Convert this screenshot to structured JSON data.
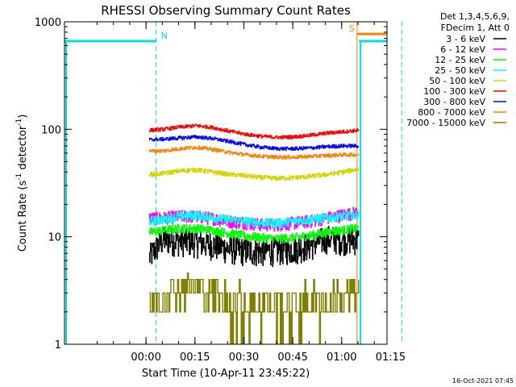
{
  "chart_data": {
    "type": "line",
    "title": "RHESSI Observing Summary Count Rates",
    "xlabel": "Start Time (10-Apr-11 23:45:22)",
    "ylabel_main": "Count Rate (s",
    "ylabel_sup1": "-1",
    "ylabel_mid": " detector",
    "ylabel_sup2": "-1",
    "ylabel_end": ")",
    "timestamp": "16-Oct-2021 07:45",
    "y_scale": "log",
    "ylim": [
      1,
      1000
    ],
    "xlim_minutes": [
      -25.4,
      73.5
    ],
    "x_ticks": [
      {
        "label": "00:00",
        "minutes": -0.4
      },
      {
        "label": "00:15",
        "minutes": 14.6
      },
      {
        "label": "00:30",
        "minutes": 29.6
      },
      {
        "label": "00:45",
        "minutes": 44.6
      },
      {
        "label": "01:00",
        "minutes": 59.6
      },
      {
        "label": "01:15",
        "minutes": 74.6
      }
    ],
    "y_ticks": [
      {
        "label": "1",
        "value": 1
      },
      {
        "label": "10",
        "value": 10
      },
      {
        "label": "100",
        "value": 100
      },
      {
        "label": "1000",
        "value": 1000
      }
    ],
    "legend_header": [
      "Det 1,3,4,5,6,9,",
      "FDecim 1, Att 0"
    ],
    "legend_placement": "top-right outside",
    "data_start_minutes": 0.6,
    "data_end_minutes": 64.9,
    "series": [
      {
        "name": "3 - 6 keV",
        "color": "#000000",
        "x": [
          0.6,
          5,
          15,
          20,
          25,
          30,
          35,
          40,
          45,
          50,
          55,
          60,
          64.9
        ],
        "y": [
          6.5,
          9.5,
          9.0,
          8.5,
          7.8,
          7.5,
          7.4,
          7.6,
          7.8,
          8.4,
          9.8,
          9.5,
          9.5
        ]
      },
      {
        "name": "6 - 12 keV",
        "color": "#ff00ff",
        "x": [
          0.6,
          5,
          10,
          15,
          20,
          25,
          30,
          35,
          40,
          45,
          50,
          55,
          60,
          64.9
        ],
        "y": [
          15,
          15,
          15.5,
          15.5,
          14.8,
          14,
          13.5,
          13,
          13,
          13.5,
          14,
          15,
          16,
          17
        ]
      },
      {
        "name": "12 - 25 keV",
        "color": "#00ff00",
        "x": [
          0.6,
          5,
          10,
          15,
          20,
          25,
          30,
          35,
          40,
          45,
          50,
          55,
          60,
          64.9
        ],
        "y": [
          11,
          11.5,
          12,
          12,
          11.5,
          10.8,
          10.2,
          9.8,
          9.6,
          9.8,
          10.3,
          11,
          11.6,
          12
        ]
      },
      {
        "name": "25 - 50 keV",
        "color": "#00ffff",
        "x": [
          0.6,
          5,
          10,
          15,
          20,
          25,
          30,
          35,
          40,
          45,
          50,
          55,
          60,
          64.9
        ],
        "y": [
          14,
          14.5,
          15.5,
          16,
          15,
          14.5,
          14,
          13.5,
          13.5,
          14,
          14.5,
          15,
          15.5,
          16
        ]
      },
      {
        "name": "50 - 100 keV",
        "color": "#d4d400",
        "x": [
          0.6,
          5,
          10,
          15,
          20,
          25,
          30,
          35,
          40,
          45,
          50,
          55,
          60,
          64.9
        ],
        "y": [
          38,
          39,
          41,
          42,
          40,
          38,
          37,
          35.5,
          35,
          35.5,
          36.5,
          38,
          40,
          43
        ]
      },
      {
        "name": "100 - 300 keV",
        "color": "#ff0000",
        "x": [
          0.6,
          5,
          10,
          15,
          20,
          25,
          30,
          35,
          40,
          45,
          50,
          55,
          60,
          64.9
        ],
        "y": [
          98,
          100,
          105,
          108,
          104,
          96,
          90,
          86,
          84,
          85,
          88,
          92,
          95,
          98
        ]
      },
      {
        "name": "300 - 800 keV",
        "color": "#0000ff",
        "x": [
          0.6,
          5,
          10,
          15,
          20,
          25,
          30,
          35,
          40,
          45,
          50,
          55,
          60,
          64.9
        ],
        "y": [
          80,
          81,
          83,
          85,
          82,
          77,
          72,
          68,
          66,
          66,
          67,
          69,
          70,
          70
        ]
      },
      {
        "name": "800 - 7000 keV",
        "color": "#ff8000",
        "x": [
          0.6,
          5,
          10,
          15,
          20,
          25,
          30,
          35,
          40,
          45,
          50,
          55,
          60,
          64.9
        ],
        "y": [
          63,
          63,
          66,
          68,
          65,
          61,
          58,
          56,
          55,
          55,
          56,
          57,
          58,
          58
        ]
      },
      {
        "name": "7000 - 15000 keV",
        "color": "#808000",
        "x": [
          0.6,
          5,
          10,
          15,
          20,
          25,
          30,
          35,
          40,
          45,
          50,
          55,
          60,
          64.9
        ],
        "y": [
          2,
          3,
          3.5,
          3.5,
          3,
          2.5,
          2.5,
          2.5,
          2.2,
          2.3,
          2.5,
          2.6,
          2.8,
          3
        ]
      }
    ],
    "flags": [
      {
        "label": "N",
        "color": "#00e0e0",
        "x_end": 2.7,
        "x_start_2": 64.9,
        "x_boundary_2": 78.0,
        "level": 660
      },
      {
        "label": "S",
        "color": "#ff8000",
        "x_start": 64.3,
        "level": 770
      }
    ]
  }
}
